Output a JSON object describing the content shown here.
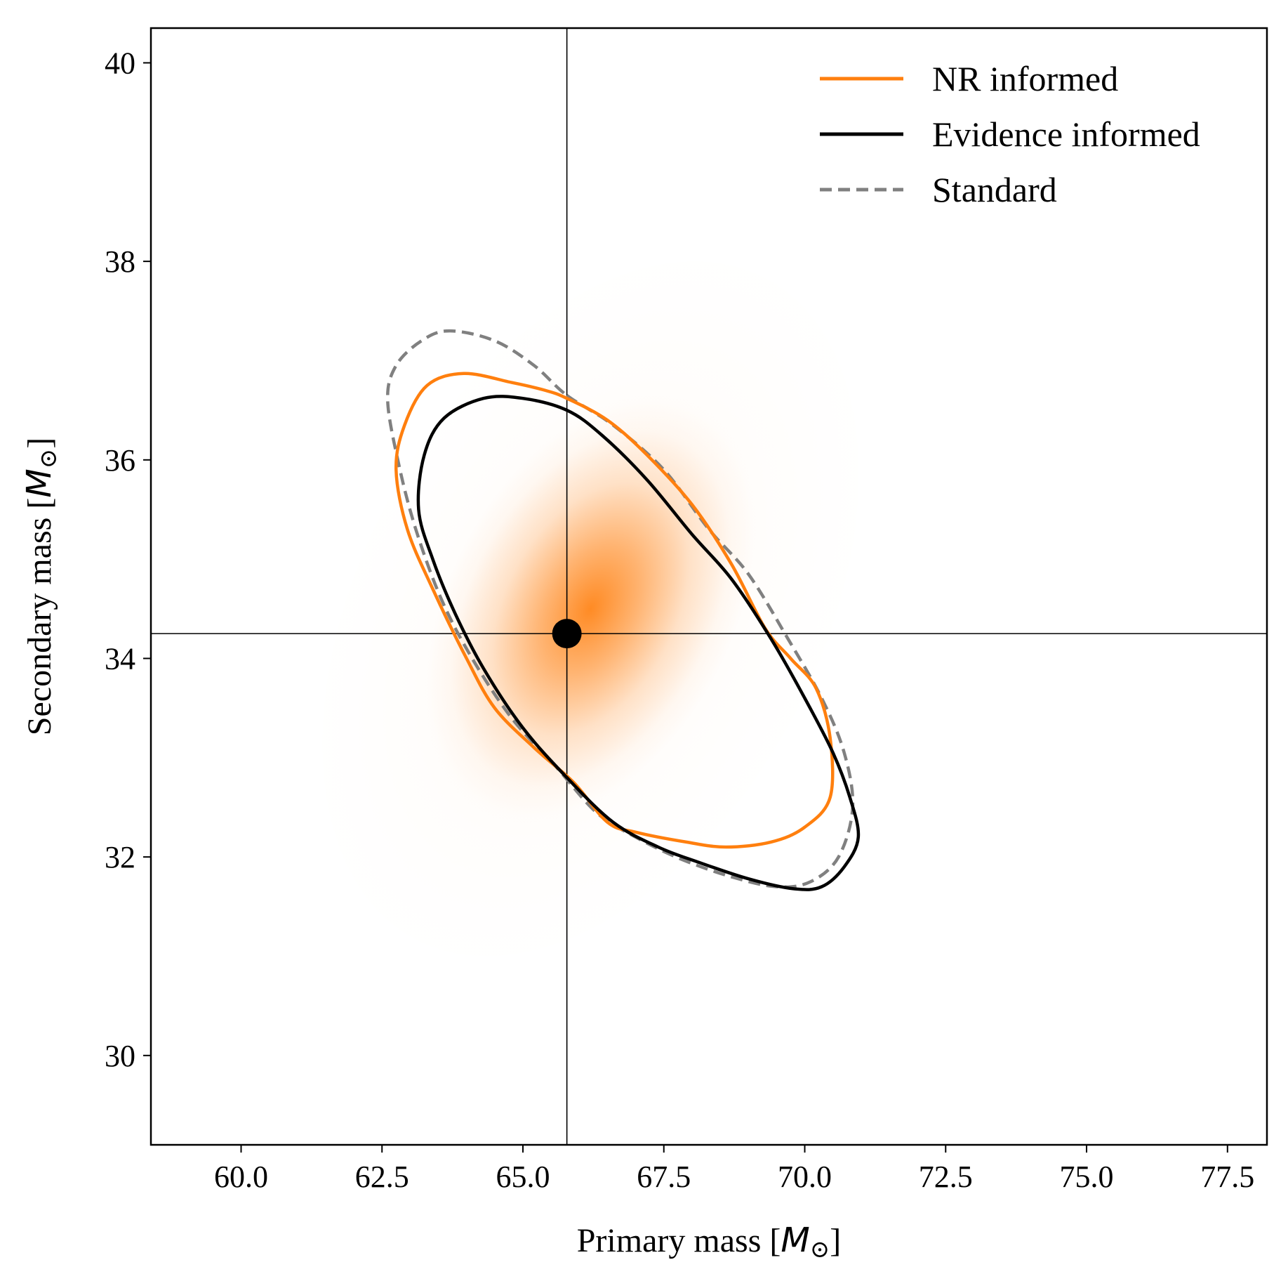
{
  "chart_data": {
    "type": "scatter",
    "title": "",
    "xlabel": "Primary mass",
    "ylabel": "Secondary mass",
    "unit": "M",
    "unit_subscript": "⊙",
    "xlim": [
      58.4,
      78.2
    ],
    "ylim": [
      29.1,
      40.35
    ],
    "xticks": [
      60.0,
      62.5,
      65.0,
      67.5,
      70.0,
      72.5,
      75.0,
      77.5
    ],
    "xtick_labels": [
      "60.0",
      "62.5",
      "65.0",
      "67.5",
      "70.0",
      "72.5",
      "75.0",
      "77.5"
    ],
    "yticks": [
      30,
      32,
      34,
      36,
      38,
      40
    ],
    "ytick_labels": [
      "30",
      "32",
      "34",
      "36",
      "38",
      "40"
    ],
    "grid": false,
    "legend_position": "top-right",
    "density": {
      "color": "#ff7f0e",
      "center": [
        66.2,
        34.5
      ],
      "description_free": true,
      "sigma_major": 2.1,
      "sigma_minor": 0.55,
      "angle_deg": -62
    },
    "marker_point": {
      "x": 65.78,
      "y": 34.25,
      "color": "#000000"
    },
    "crosshair": {
      "x": 65.78,
      "y": 34.25,
      "color": "#000000"
    },
    "series": [
      {
        "name": "NR informed",
        "color": "#ff7f0e",
        "style": "solid",
        "points": [
          [
            65.78,
            36.62
          ],
          [
            66.5,
            36.4
          ],
          [
            67.2,
            36.05
          ],
          [
            68.0,
            35.55
          ],
          [
            68.7,
            34.95
          ],
          [
            69.3,
            34.3
          ],
          [
            69.75,
            34.0
          ],
          [
            70.2,
            33.7
          ],
          [
            70.45,
            33.2
          ],
          [
            70.45,
            32.6
          ],
          [
            70.0,
            32.3
          ],
          [
            69.4,
            32.15
          ],
          [
            68.6,
            32.1
          ],
          [
            67.9,
            32.15
          ],
          [
            67.0,
            32.25
          ],
          [
            66.5,
            32.35
          ],
          [
            65.9,
            32.75
          ],
          [
            65.2,
            33.1
          ],
          [
            64.5,
            33.5
          ],
          [
            64.0,
            34.0
          ],
          [
            63.4,
            34.7
          ],
          [
            62.95,
            35.3
          ],
          [
            62.75,
            35.9
          ],
          [
            62.9,
            36.35
          ],
          [
            63.3,
            36.75
          ],
          [
            63.95,
            36.87
          ],
          [
            64.8,
            36.78
          ],
          [
            65.4,
            36.7
          ]
        ]
      },
      {
        "name": "Evidence informed",
        "color": "#000000",
        "style": "solid",
        "points": [
          [
            65.78,
            36.5
          ],
          [
            66.4,
            36.25
          ],
          [
            67.2,
            35.8
          ],
          [
            68.0,
            35.25
          ],
          [
            68.7,
            34.8
          ],
          [
            69.4,
            34.2
          ],
          [
            70.0,
            33.6
          ],
          [
            70.5,
            33.05
          ],
          [
            70.8,
            32.6
          ],
          [
            70.95,
            32.2
          ],
          [
            70.7,
            31.9
          ],
          [
            70.3,
            31.7
          ],
          [
            69.8,
            31.68
          ],
          [
            69.0,
            31.78
          ],
          [
            68.1,
            31.95
          ],
          [
            67.4,
            32.1
          ],
          [
            66.6,
            32.35
          ],
          [
            65.78,
            32.8
          ],
          [
            65.0,
            33.3
          ],
          [
            64.3,
            33.9
          ],
          [
            63.8,
            34.45
          ],
          [
            63.4,
            35.0
          ],
          [
            63.15,
            35.5
          ],
          [
            63.25,
            36.05
          ],
          [
            63.6,
            36.42
          ],
          [
            64.3,
            36.62
          ],
          [
            65.0,
            36.62
          ]
        ]
      },
      {
        "name": "Standard",
        "color": "#808080",
        "style": "dashed",
        "points": [
          [
            65.78,
            36.65
          ],
          [
            66.6,
            36.35
          ],
          [
            67.5,
            35.9
          ],
          [
            68.3,
            35.3
          ],
          [
            69.0,
            34.85
          ],
          [
            69.7,
            34.2
          ],
          [
            70.3,
            33.6
          ],
          [
            70.7,
            33.05
          ],
          [
            70.85,
            32.5
          ],
          [
            70.6,
            32.0
          ],
          [
            70.1,
            31.75
          ],
          [
            69.5,
            31.7
          ],
          [
            68.7,
            31.8
          ],
          [
            67.8,
            31.98
          ],
          [
            67.0,
            32.2
          ],
          [
            66.3,
            32.45
          ],
          [
            65.6,
            32.9
          ],
          [
            64.8,
            33.4
          ],
          [
            64.1,
            34.0
          ],
          [
            63.55,
            34.6
          ],
          [
            63.1,
            35.3
          ],
          [
            62.8,
            35.95
          ],
          [
            62.6,
            36.6
          ],
          [
            62.75,
            36.95
          ],
          [
            63.2,
            37.2
          ],
          [
            63.7,
            37.3
          ],
          [
            64.5,
            37.2
          ],
          [
            65.2,
            36.95
          ]
        ]
      }
    ]
  }
}
